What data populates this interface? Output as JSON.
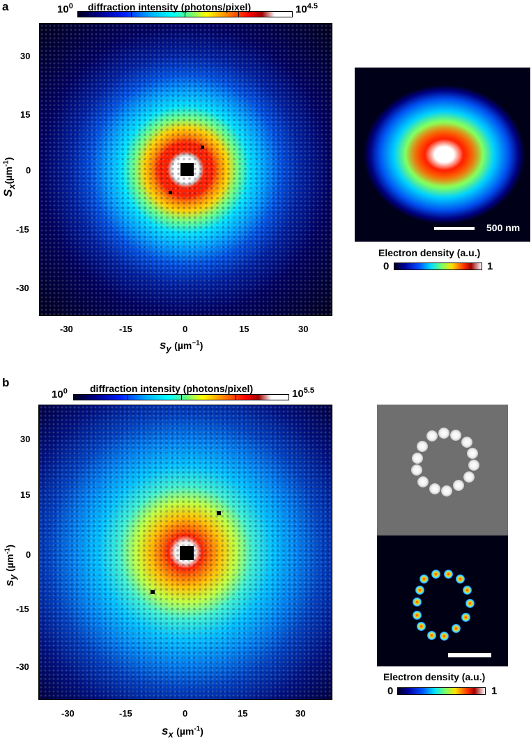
{
  "panel_a": {
    "label": "a",
    "colorbar": {
      "label": "diffraction intensity (photons/pixel)",
      "min_base": "10",
      "min_exp": "0",
      "max_base": "10",
      "max_exp": "4.5"
    },
    "x_ticks": [
      "-30",
      "-15",
      "0",
      "15",
      "30"
    ],
    "y_ticks": [
      "30",
      "15",
      "0",
      "-15",
      "-30"
    ],
    "x_axis": {
      "var": "s",
      "sub": "y",
      "unit": "(µm",
      "unit_exp": "−1",
      "unit_close": ")"
    },
    "y_axis": {
      "var": "S",
      "sub": "x",
      "unit": "(µm",
      "unit_exp": "-1",
      "unit_close": ")"
    },
    "reconstruction": {
      "scale_text": "500 nm",
      "colorbar_label": "Electron density (a.u.)",
      "cb_min": "0",
      "cb_max": "1"
    }
  },
  "panel_b": {
    "label": "b",
    "colorbar": {
      "label": "diffraction intensity (photons/pixel)",
      "min_base": "10",
      "min_exp": "0",
      "max_base": "10",
      "max_exp": "5.5"
    },
    "x_ticks": [
      "-30",
      "-15",
      "0",
      "15",
      "30"
    ],
    "y_ticks": [
      "30",
      "15",
      "0",
      "-15",
      "-30"
    ],
    "x_axis": {
      "var": "s",
      "sub": "x",
      "unit": "(µm",
      "unit_exp": "-1",
      "unit_close": ")"
    },
    "y_axis": {
      "var": "s",
      "sub": "y",
      "unit": "(µm",
      "unit_exp": "-1",
      "unit_close": ")"
    },
    "reconstruction": {
      "colorbar_label": "Electron density (a.u.)",
      "cb_min": "0",
      "cb_max": "1"
    }
  }
}
